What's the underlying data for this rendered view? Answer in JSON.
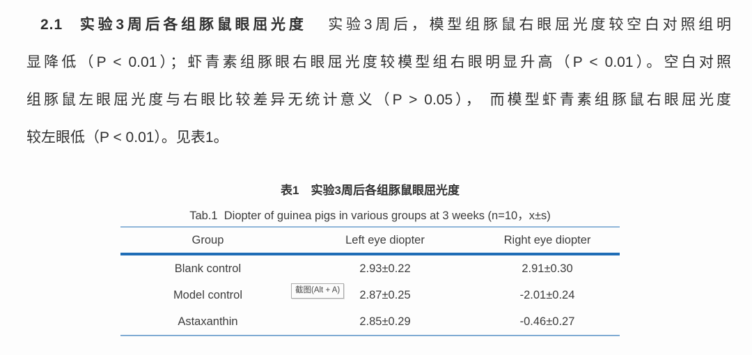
{
  "paragraph": {
    "heading_number": "2.1",
    "heading": "实验3周后各组豚鼠眼屈光度",
    "line1_rest": "实验3周后，模型组豚鼠右眼屈光度较空白对照组明",
    "line2": "显降低（P < 0.01）；虾青素组豚眼右眼屈光度较模型组右眼明显升高（P < 0.01）。空白对照",
    "line3": "组豚鼠左眼屈光度与右眼比较差异无统计意义（P > 0.05）， 而模型虾青素组豚鼠右眼屈光度",
    "line4": "较左眼低（P < 0.01）。见表1。"
  },
  "table": {
    "caption_zh": "表1　实验3周后各组豚鼠眼屈光度",
    "caption_en": "Tab.1  Diopter of guinea pigs in various groups at 3 weeks (n=10，x±s)",
    "headers": [
      "Group",
      "Left eye diopter",
      "Right eye diopter"
    ],
    "rows": [
      [
        "Blank control",
        "2.93±0.22",
        "2.91±0.30"
      ],
      [
        "Model control",
        "2.87±0.25",
        "-2.01±0.24"
      ],
      [
        "Astaxanthin",
        "2.85±0.29",
        "-0.46±0.27"
      ]
    ],
    "colors": {
      "rule_light": "#8fb6d9",
      "rule_heavy": "#1f6db6",
      "rule_bottom": "#7fabd3"
    }
  },
  "overlay": {
    "screenshot_tooltip": "截图(Alt + A)"
  }
}
